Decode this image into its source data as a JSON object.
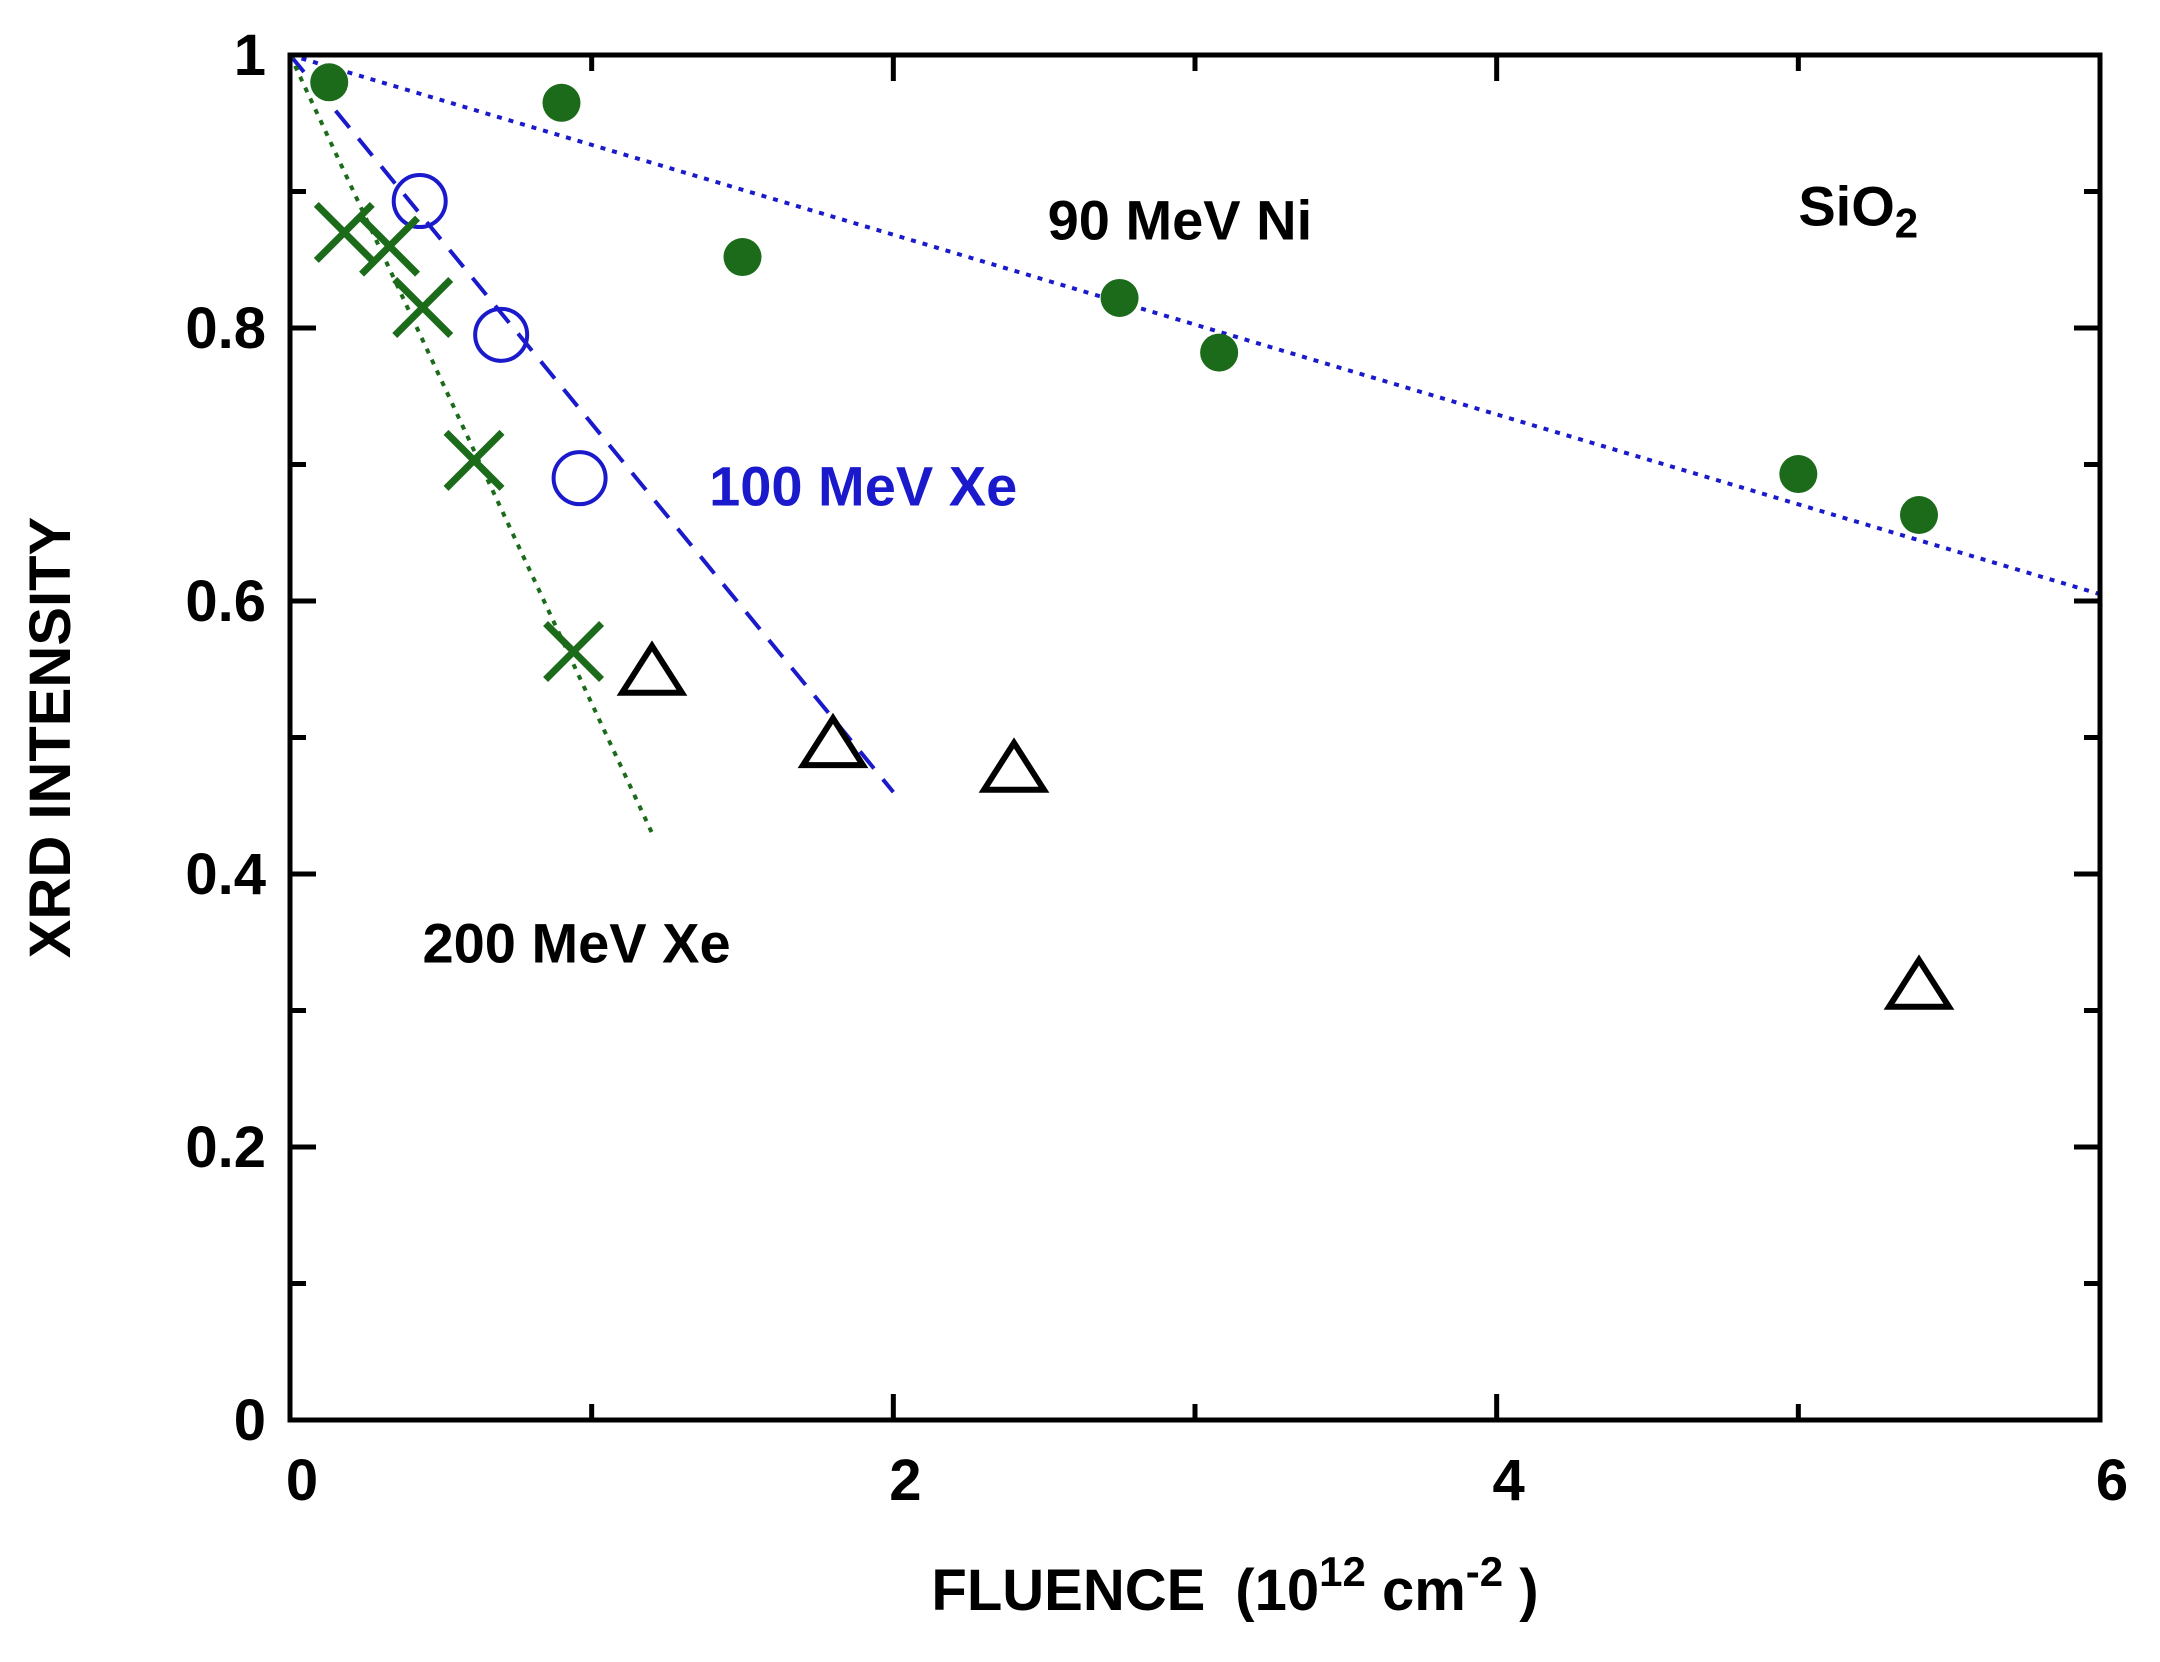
{
  "chart_data": {
    "type": "scatter",
    "title": "",
    "xlabel": "FLUENCE",
    "xlabel_unit": {
      "open": "(10",
      "sup1": "12",
      "mid": " cm",
      "sup2": "-2",
      "close": " )"
    },
    "ylabel": "XRD  INTENSITY",
    "xlim": [
      0,
      6
    ],
    "ylim": [
      0,
      1
    ],
    "x_ticks": [
      0,
      2,
      4,
      6
    ],
    "x_tick_labels": [
      "0",
      "2",
      "4",
      "6"
    ],
    "y_ticks": [
      0,
      0.2,
      0.4,
      0.6,
      0.8,
      1
    ],
    "y_tick_labels": [
      "0",
      "0.2",
      "0.4",
      "0.6",
      "0.8",
      "1"
    ],
    "x_minor_ticks": [
      1,
      3,
      5
    ],
    "y_minor_ticks": [
      0.1,
      0.3,
      0.5,
      0.7,
      0.9
    ],
    "grid": false,
    "annotations": {
      "material": {
        "text": "SiO",
        "sub": "2",
        "x": 5.0,
        "y": 0.875
      },
      "ni": {
        "text": "90 MeV Ni",
        "x": 2.95,
        "y": 0.865
      },
      "xe100": {
        "text": "100 MeV Xe",
        "x": 1.9,
        "y": 0.67
      },
      "xe200": {
        "text": "200 MeV Xe",
        "x": 0.95,
        "y": 0.335
      }
    },
    "series": [
      {
        "key": "ni90",
        "marker": "filled-circle",
        "color": "#1b6b1b",
        "x": [
          0.13,
          0.9,
          1.5,
          2.75,
          3.08,
          5.0,
          5.4
        ],
        "y": [
          0.98,
          0.965,
          0.852,
          0.822,
          0.782,
          0.693,
          0.663
        ]
      },
      {
        "key": "xe100",
        "marker": "open-circle",
        "color": "#1a1acc",
        "x": [
          0.43,
          0.7,
          0.96
        ],
        "y": [
          0.893,
          0.795,
          0.69
        ]
      },
      {
        "key": "xe200",
        "marker": "cross",
        "color": "#1b6b1b",
        "x": [
          0.18,
          0.33,
          0.44,
          0.61,
          0.94
        ],
        "y": [
          0.87,
          0.86,
          0.815,
          0.703,
          0.563
        ]
      },
      {
        "key": "extra",
        "marker": "open-triangle",
        "color": "#000000",
        "x": [
          1.2,
          1.8,
          2.4,
          5.4
        ],
        "y": [
          0.548,
          0.495,
          0.477,
          0.318
        ]
      }
    ],
    "fit_lines": [
      {
        "key": "ni90-fit",
        "style": "dotted",
        "color": "#1a1acc",
        "x": [
          0,
          6
        ],
        "y": [
          1.0,
          0.605
        ]
      },
      {
        "key": "xe100-fit",
        "style": "dashed",
        "color": "#1a1acc",
        "x": [
          0,
          2.0
        ],
        "y": [
          1.0,
          0.46
        ]
      },
      {
        "key": "xe200-fit",
        "style": "dotted",
        "color": "#1b6b1b",
        "x": [
          0,
          1.2
        ],
        "y": [
          1.0,
          0.43
        ]
      }
    ]
  }
}
